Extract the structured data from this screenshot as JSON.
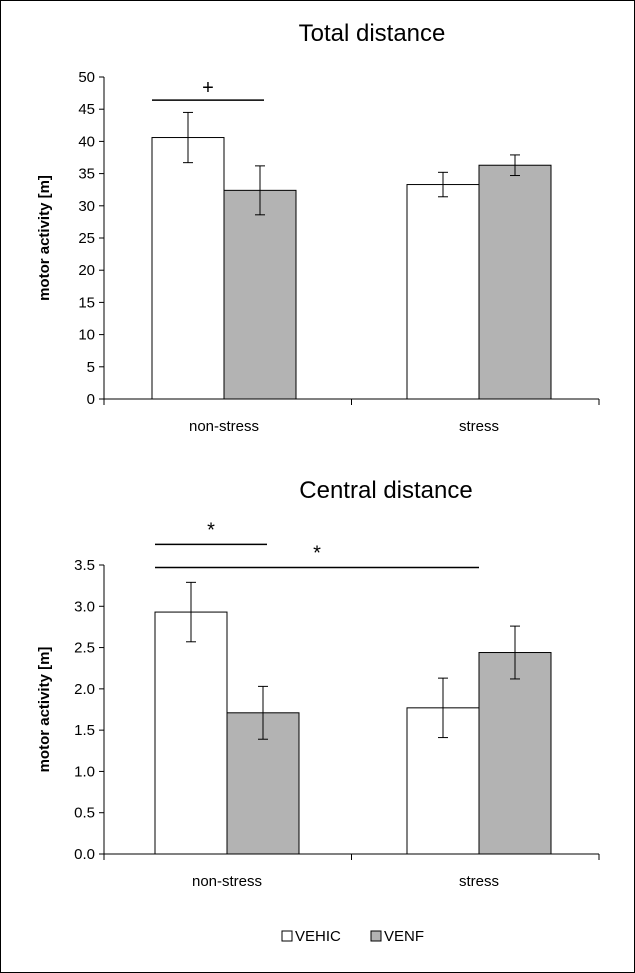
{
  "colors": {
    "VEHIC": "#ffffff",
    "VENF": "#b3b3b3",
    "stroke": "#000000"
  },
  "legend": {
    "placement": "bottom-center",
    "items": [
      "VEHIC",
      "VENF"
    ]
  },
  "chart_data": [
    {
      "type": "bar",
      "title": "Total distance",
      "ylabel": "motor activity [m]",
      "categories": [
        "non-stress",
        "stress"
      ],
      "ylim": [
        0,
        50
      ],
      "yticks": [
        "0",
        "5",
        "10",
        "15",
        "20",
        "25",
        "30",
        "35",
        "40",
        "45",
        "50"
      ],
      "ytick_values": [
        0,
        5,
        10,
        15,
        20,
        25,
        30,
        35,
        40,
        45,
        50
      ],
      "grid": false,
      "series": [
        {
          "name": "VEHIC",
          "values": [
            40.6,
            33.3
          ],
          "errors": [
            3.9,
            1.9
          ]
        },
        {
          "name": "VENF",
          "values": [
            32.4,
            36.3
          ],
          "errors": [
            3.8,
            1.6
          ]
        }
      ],
      "annotations": [
        {
          "text": "+",
          "from": {
            "category": 0,
            "series": 0
          },
          "to": {
            "category": 0,
            "series": 1
          },
          "y": 46.4
        }
      ]
    },
    {
      "type": "bar",
      "title": "Central distance",
      "ylabel": "motor activity [m]",
      "categories": [
        "non-stress",
        "stress"
      ],
      "ylim": [
        0,
        3.5
      ],
      "yticks": [
        "0.0",
        "0.5",
        "1.0",
        "1.5",
        "2.0",
        "2.5",
        "3.0",
        "3.5"
      ],
      "ytick_values": [
        0,
        0.5,
        1.0,
        1.5,
        2.0,
        2.5,
        3.0,
        3.5
      ],
      "grid": false,
      "series": [
        {
          "name": "VEHIC",
          "values": [
            2.93,
            1.77
          ],
          "errors": [
            0.36,
            0.36
          ]
        },
        {
          "name": "VENF",
          "values": [
            1.71,
            2.44
          ],
          "errors": [
            0.32,
            0.32
          ]
        }
      ],
      "annotations": [
        {
          "text": "*",
          "from": {
            "category": 0,
            "series": 0
          },
          "to": {
            "category": 0,
            "series": 1
          },
          "y": 3.75
        },
        {
          "text": "*",
          "from": {
            "category": 0,
            "series": 0
          },
          "to": {
            "category": 1,
            "series": 0
          },
          "y": 3.47
        }
      ]
    }
  ]
}
